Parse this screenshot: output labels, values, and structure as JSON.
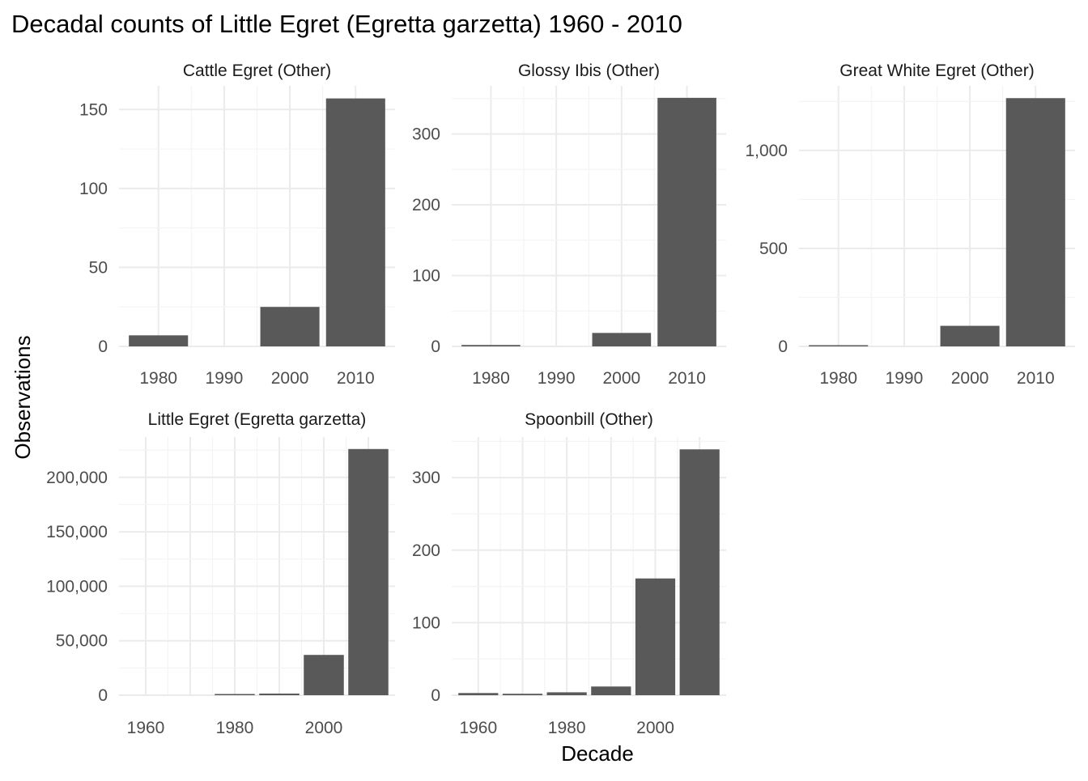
{
  "title": "Decadal counts of Little Egret (Egretta garzetta) 1960 - 2010",
  "xlabel": "Decade",
  "ylabel": "Observations",
  "colors": {
    "bar": "#595959",
    "grid_major": "#ebebeb",
    "grid_minor": "#f4f4f4",
    "background": "#ffffff"
  },
  "chart_data": [
    {
      "type": "bar",
      "facet": "Cattle Egret (Other)",
      "categories": [
        1980,
        1990,
        2000,
        2010
      ],
      "tick_labels": [
        "1980",
        "1990",
        "2000",
        "2010"
      ],
      "values": [
        7,
        0,
        25,
        157
      ],
      "ylim": [
        0,
        165
      ],
      "yticks": [
        0,
        50,
        100,
        150
      ],
      "ytick_labels": [
        "0",
        "50",
        "100",
        "150"
      ]
    },
    {
      "type": "bar",
      "facet": "Glossy Ibis (Other)",
      "categories": [
        1980,
        1990,
        2000,
        2010
      ],
      "tick_labels": [
        "1980",
        "1990",
        "2000",
        "2010"
      ],
      "values": [
        2,
        0,
        19,
        351
      ],
      "ylim": [
        0,
        368
      ],
      "yticks": [
        0,
        100,
        200,
        300
      ],
      "ytick_labels": [
        "0",
        "100",
        "200",
        "300"
      ]
    },
    {
      "type": "bar",
      "facet": "Great White Egret (Other)",
      "categories": [
        1980,
        1990,
        2000,
        2010
      ],
      "tick_labels": [
        "1980",
        "1990",
        "2000",
        "2010"
      ],
      "values": [
        3,
        0,
        105,
        1267
      ],
      "ylim": [
        0,
        1330
      ],
      "yticks": [
        0,
        500,
        1000
      ],
      "ytick_labels": [
        "0",
        "500",
        "1,000"
      ]
    },
    {
      "type": "bar",
      "facet": "Little Egret (Egretta garzetta)",
      "categories": [
        1960,
        1970,
        1980,
        1990,
        2000,
        2010
      ],
      "x_ticks": [
        1960,
        1980,
        2000
      ],
      "tick_labels": [
        "1960",
        "1980",
        "2000"
      ],
      "values": [
        0,
        0,
        200,
        1500,
        37000,
        226000
      ],
      "ylim": [
        0,
        237000
      ],
      "yticks": [
        0,
        50000,
        100000,
        150000,
        200000
      ],
      "ytick_labels": [
        "0",
        "50,000",
        "100,000",
        "150,000",
        "200,000"
      ]
    },
    {
      "type": "bar",
      "facet": "Spoonbill (Other)",
      "categories": [
        1960,
        1970,
        1980,
        1990,
        2000,
        2010
      ],
      "x_ticks": [
        1960,
        1980,
        2000
      ],
      "tick_labels": [
        "1960",
        "1980",
        "2000"
      ],
      "values": [
        3,
        2,
        4,
        12,
        161,
        339
      ],
      "ylim": [
        0,
        356
      ],
      "yticks": [
        0,
        100,
        200,
        300
      ],
      "ytick_labels": [
        "0",
        "100",
        "200",
        "300"
      ]
    }
  ]
}
